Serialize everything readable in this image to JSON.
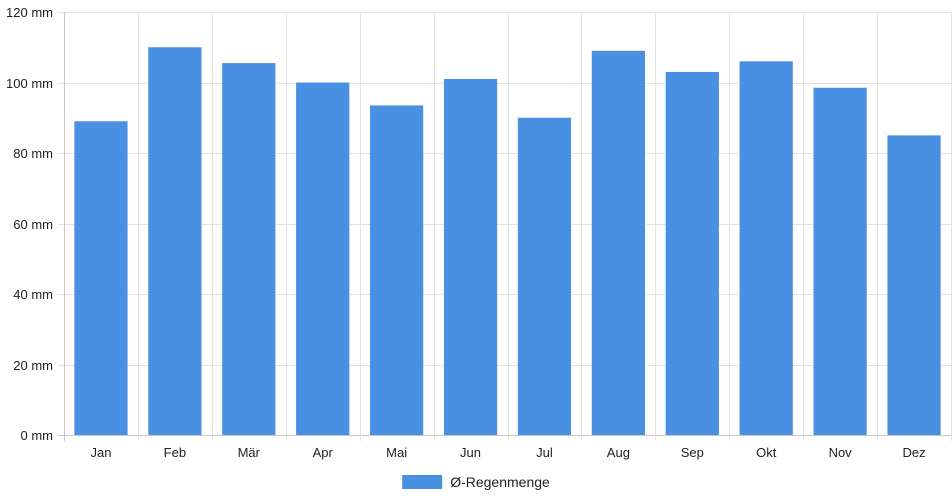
{
  "chart_data": {
    "type": "bar",
    "categories": [
      "Jan",
      "Feb",
      "Mär",
      "Apr",
      "Mai",
      "Jun",
      "Jul",
      "Aug",
      "Sep",
      "Okt",
      "Nov",
      "Dez"
    ],
    "series": [
      {
        "name": "Ø-Regenmenge",
        "values": [
          89,
          110,
          105.5,
          100,
          93.5,
          101,
          90,
          109,
          103,
          106,
          98.5,
          85
        ],
        "color": "#4a90e2"
      }
    ],
    "y_ticks": [
      "0 mm",
      "20 mm",
      "40 mm",
      "60 mm",
      "80 mm",
      "100 mm",
      "120 mm"
    ],
    "ylim": [
      0,
      120
    ],
    "y_unit": "mm",
    "grid": true,
    "legend_position": "bottom-center"
  }
}
